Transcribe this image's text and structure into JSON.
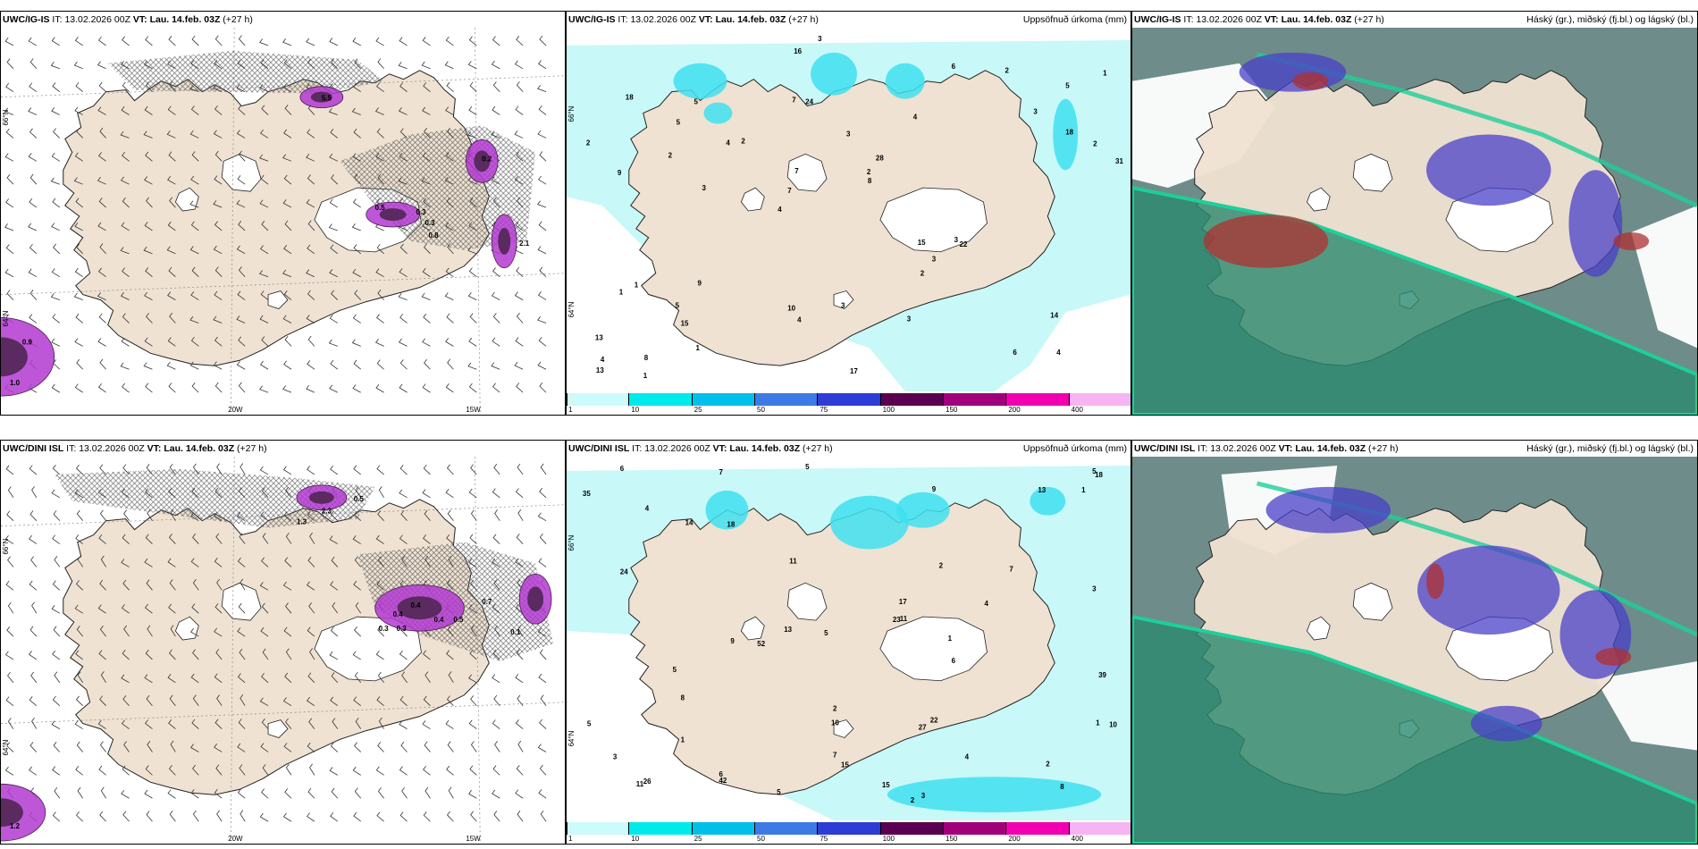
{
  "top_row": {
    "wind": {
      "model": "UWC/IG-IS",
      "it_label": "IT:",
      "it": "13.02.2026 00Z",
      "vt_label": "VT:",
      "vt": "Lau. 14.feb. 03Z",
      "lead": "(+27 h)"
    },
    "precip": {
      "model": "UWC/IG-IS",
      "it_label": "IT:",
      "it": "13.02.2026 00Z",
      "vt_label": "VT:",
      "vt": "Lau. 14.feb. 03Z",
      "lead": "(+27 h)",
      "title": "Uppsöfnuð úrkoma (mm)"
    },
    "cloud": {
      "model": "UWC/IG-IS",
      "it_label": "IT:",
      "it": "13.02.2026 00Z",
      "vt_label": "VT:",
      "vt": "Lau. 14.feb. 03Z",
      "lead": "(+27 h)",
      "title": "Háský (gr.), miðský (fj.bl.) og lágský (bl.)"
    },
    "wind_values": [
      "5.5",
      "0.9",
      "1.0",
      "0.5",
      "0.3",
      "0.3",
      "0.8",
      "0.2",
      "2.1"
    ],
    "precip_values": [
      "4",
      "9",
      "5",
      "4",
      "4",
      "8",
      "7",
      "3",
      "1",
      "2",
      "13",
      "15",
      "24",
      "28",
      "22",
      "18",
      "16",
      "31",
      "15",
      "18",
      "7",
      "10",
      "7",
      "5",
      "6",
      "9",
      "6",
      "14",
      "3",
      "17",
      "4",
      "2",
      "2",
      "1",
      "2",
      "2",
      "4",
      "4",
      "8",
      "1",
      "3",
      "1",
      "3",
      "3",
      "5",
      "1",
      "13",
      "3",
      "2",
      "3",
      "3",
      "2",
      "5"
    ]
  },
  "bottom_row": {
    "wind": {
      "model": "UWC/DINI ISL",
      "it_label": "IT:",
      "it": "13.02.2026 00Z",
      "vt_label": "VT:",
      "vt": "Lau. 14.feb. 03Z",
      "lead": "(+27 h)"
    },
    "precip": {
      "model": "UWC/DINI ISL",
      "it_label": "IT:",
      "it": "13.02.2026 00Z",
      "vt_label": "VT:",
      "vt": "Lau. 14.feb. 03Z",
      "lead": "(+27 h)",
      "title": "Uppsöfnuð úrkoma (mm)"
    },
    "cloud": {
      "model": "UWC/DINI ISL",
      "it_label": "IT:",
      "it": "13.02.2026 00Z",
      "vt_label": "VT:",
      "vt": "Lau. 14.feb. 03Z",
      "lead": "(+27 h)",
      "title": "Háský (gr.), miðský (fj.bl.) og lágský (bl.)"
    },
    "wind_values": [
      "0.5",
      "2.3",
      "1.3",
      "0.4",
      "0.3",
      "0.3",
      "0.4",
      "0.4",
      "0.5",
      "1.2",
      "0.7",
      "0.1"
    ],
    "precip_values": [
      "5",
      "2",
      "6",
      "4",
      "7",
      "4",
      "9",
      "8",
      "5",
      "11",
      "13",
      "15",
      "13",
      "10",
      "9",
      "23",
      "24",
      "42",
      "52",
      "35",
      "27",
      "18",
      "17",
      "11",
      "7",
      "5",
      "5",
      "8",
      "6",
      "6",
      "5",
      "3",
      "2",
      "1",
      "1",
      "1",
      "1",
      "3",
      "2",
      "2",
      "11",
      "4",
      "10",
      "26",
      "18",
      "22",
      "39",
      "15",
      "14",
      "7",
      "5",
      "3"
    ]
  },
  "axis_labels": {
    "lat_66": "66°N",
    "lat_64": "64°N",
    "lon_20": "20W",
    "lon_15": "15W"
  },
  "colorbar": {
    "labels": [
      "1",
      "10",
      "25",
      "50",
      "75",
      "100",
      "150",
      "200",
      "400"
    ],
    "colors": [
      "#cdfafa",
      "#00eaea",
      "#00c0ea",
      "#3d7ae6",
      "#2c3cd4",
      "#5a0050",
      "#a0007a",
      "#f000b0",
      "#f7b4f2"
    ]
  },
  "colors": {
    "land": "#efe2d2",
    "sea": "#ffffff",
    "coast": "#222222",
    "precip_light": "#c8f8f8",
    "precip_mid": "#40e0f0",
    "wind_purple": "#b23ad0",
    "wind_dark": "#5a2a60",
    "cloud_teal": "#2a8a6e",
    "cloud_dark": "#204e4c",
    "cloud_blue": "#4a40c8",
    "cloud_red": "#b03030"
  }
}
